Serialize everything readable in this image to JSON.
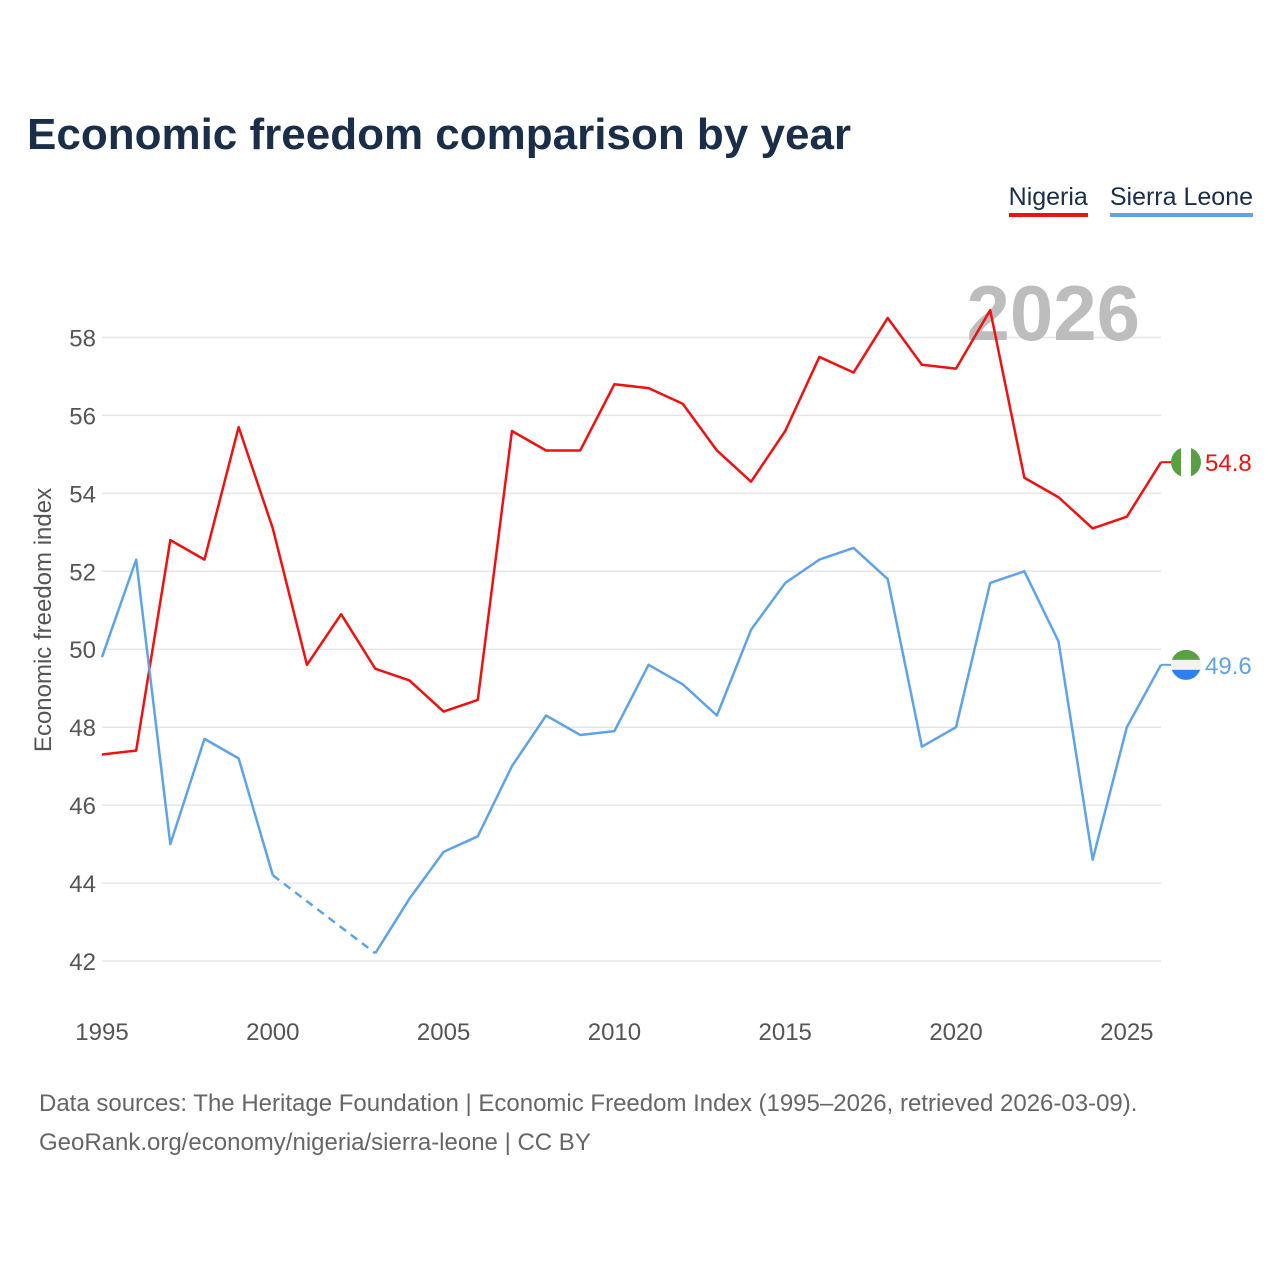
{
  "title": "Economic freedom comparison by year",
  "chart_data": {
    "type": "line",
    "title": "Economic freedom comparison by year",
    "ylabel": "Economic freedom index",
    "xlabel": "",
    "x": [
      1995,
      1996,
      1997,
      1998,
      1999,
      2000,
      2001,
      2002,
      2003,
      2004,
      2005,
      2006,
      2007,
      2008,
      2009,
      2010,
      2011,
      2012,
      2013,
      2014,
      2015,
      2016,
      2017,
      2018,
      2019,
      2020,
      2021,
      2022,
      2023,
      2024,
      2025,
      2026
    ],
    "xlim": [
      1995,
      2026
    ],
    "ylim": [
      41,
      59.5
    ],
    "xticks": [
      1995,
      2000,
      2005,
      2010,
      2015,
      2020,
      2025
    ],
    "yticks": [
      42,
      44,
      46,
      48,
      50,
      52,
      54,
      56,
      58
    ],
    "grid": true,
    "year_label": "2026",
    "legend_position": "top-right",
    "series": [
      {
        "name": "Nigeria",
        "color": "#ee1111",
        "values": [
          47.3,
          47.4,
          52.8,
          52.3,
          55.7,
          53.1,
          49.6,
          50.9,
          49.5,
          49.2,
          48.4,
          48.7,
          55.6,
          55.1,
          55.1,
          56.8,
          56.7,
          56.3,
          55.1,
          54.3,
          55.6,
          57.5,
          57.1,
          58.5,
          57.3,
          57.2,
          58.7,
          54.4,
          53.9,
          53.1,
          53.4,
          54.8
        ],
        "end_label": "54.8",
        "flag": "nigeria-flag-icon"
      },
      {
        "name": "Sierra Leone",
        "color": "#5fa3e6",
        "values": [
          49.8,
          52.3,
          45.0,
          47.7,
          47.2,
          44.2,
          null,
          null,
          42.2,
          43.6,
          44.8,
          45.2,
          47.0,
          48.3,
          47.8,
          47.9,
          49.6,
          49.1,
          48.3,
          50.5,
          51.7,
          52.3,
          52.6,
          51.8,
          47.5,
          48.0,
          51.7,
          52.0,
          50.2,
          44.6,
          48.0,
          49.6
        ],
        "end_label": "49.6",
        "flag": "sierra-leone-flag-icon"
      }
    ]
  },
  "source": {
    "line1": "Data sources: The Heritage Foundation | Economic Freedom Index (1995–2026, retrieved 2026-03-09).",
    "line2": "GeoRank.org/economy/nigeria/sierra-leone | CC BY"
  }
}
